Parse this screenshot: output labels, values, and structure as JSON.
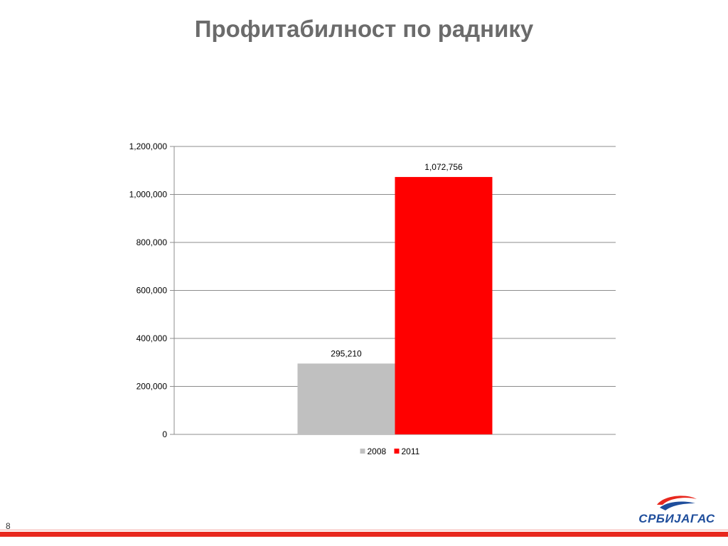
{
  "slide": {
    "title": "Профитабилност по раднику",
    "page_number": "8",
    "logo_text": "СРБИЈАГАС"
  },
  "colors": {
    "series_2008": "#c0c0c0",
    "series_2011": "#ff0000",
    "footer": "#e8281e",
    "logo_blue": "#1f4e9c",
    "logo_red": "#e8281e"
  },
  "chart_data": {
    "type": "bar",
    "title": "",
    "xlabel": "",
    "ylabel": "",
    "categories": [
      ""
    ],
    "series": [
      {
        "name": "2008",
        "values": [
          295210
        ],
        "data_label": "295,210",
        "color": "#c0c0c0"
      },
      {
        "name": "2011",
        "values": [
          1072756
        ],
        "data_label": "1,072,756",
        "color": "#ff0000"
      }
    ],
    "ylim": [
      0,
      1200000
    ],
    "yticks": [
      0,
      200000,
      400000,
      600000,
      800000,
      1000000,
      1200000
    ],
    "ytick_labels": [
      "0",
      "200,000",
      "400,000",
      "600,000",
      "800,000",
      "1,000,000",
      "1,200,000"
    ],
    "grid": true,
    "legend": "bottom"
  }
}
